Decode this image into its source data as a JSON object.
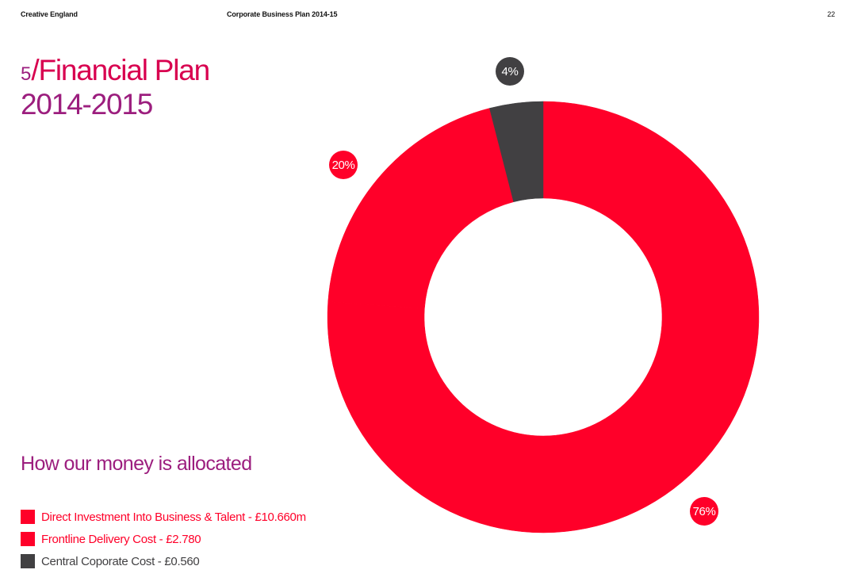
{
  "header": {
    "org": "Creative England",
    "doc_title": "Corporate Business Plan 2014-15",
    "page_number": "22"
  },
  "title": {
    "number": "5",
    "text": "/Financial Plan",
    "years": "2014-2015"
  },
  "subtitle": "How our money is allocated",
  "colors": {
    "red": "#ff0029",
    "dark": "#414042",
    "purple": "#9c1e7e",
    "title_red": "#d8004f"
  },
  "chart_data": {
    "type": "pie",
    "style": "donut",
    "title": "How our money is allocated",
    "units": "£m",
    "series": [
      {
        "name": "Direct Investment Into Business & Talent",
        "legend": "Direct Investment Into Business & Talent - £10.660m",
        "value": 10.66,
        "percent_label": "76%",
        "color": "#ff0029"
      },
      {
        "name": "Frontline Delivery Cost",
        "legend": "Frontline Delivery Cost - £2.780",
        "value": 2.78,
        "percent_label": "20%",
        "color": "#ff0029"
      },
      {
        "name": "Central Coporate Cost",
        "legend": "Central Coporate Cost - £0.560",
        "value": 0.56,
        "percent_label": "4%",
        "color": "#414042"
      }
    ],
    "start_angle_deg": 0,
    "direction": "clockwise",
    "legend_position": "bottom-left"
  }
}
